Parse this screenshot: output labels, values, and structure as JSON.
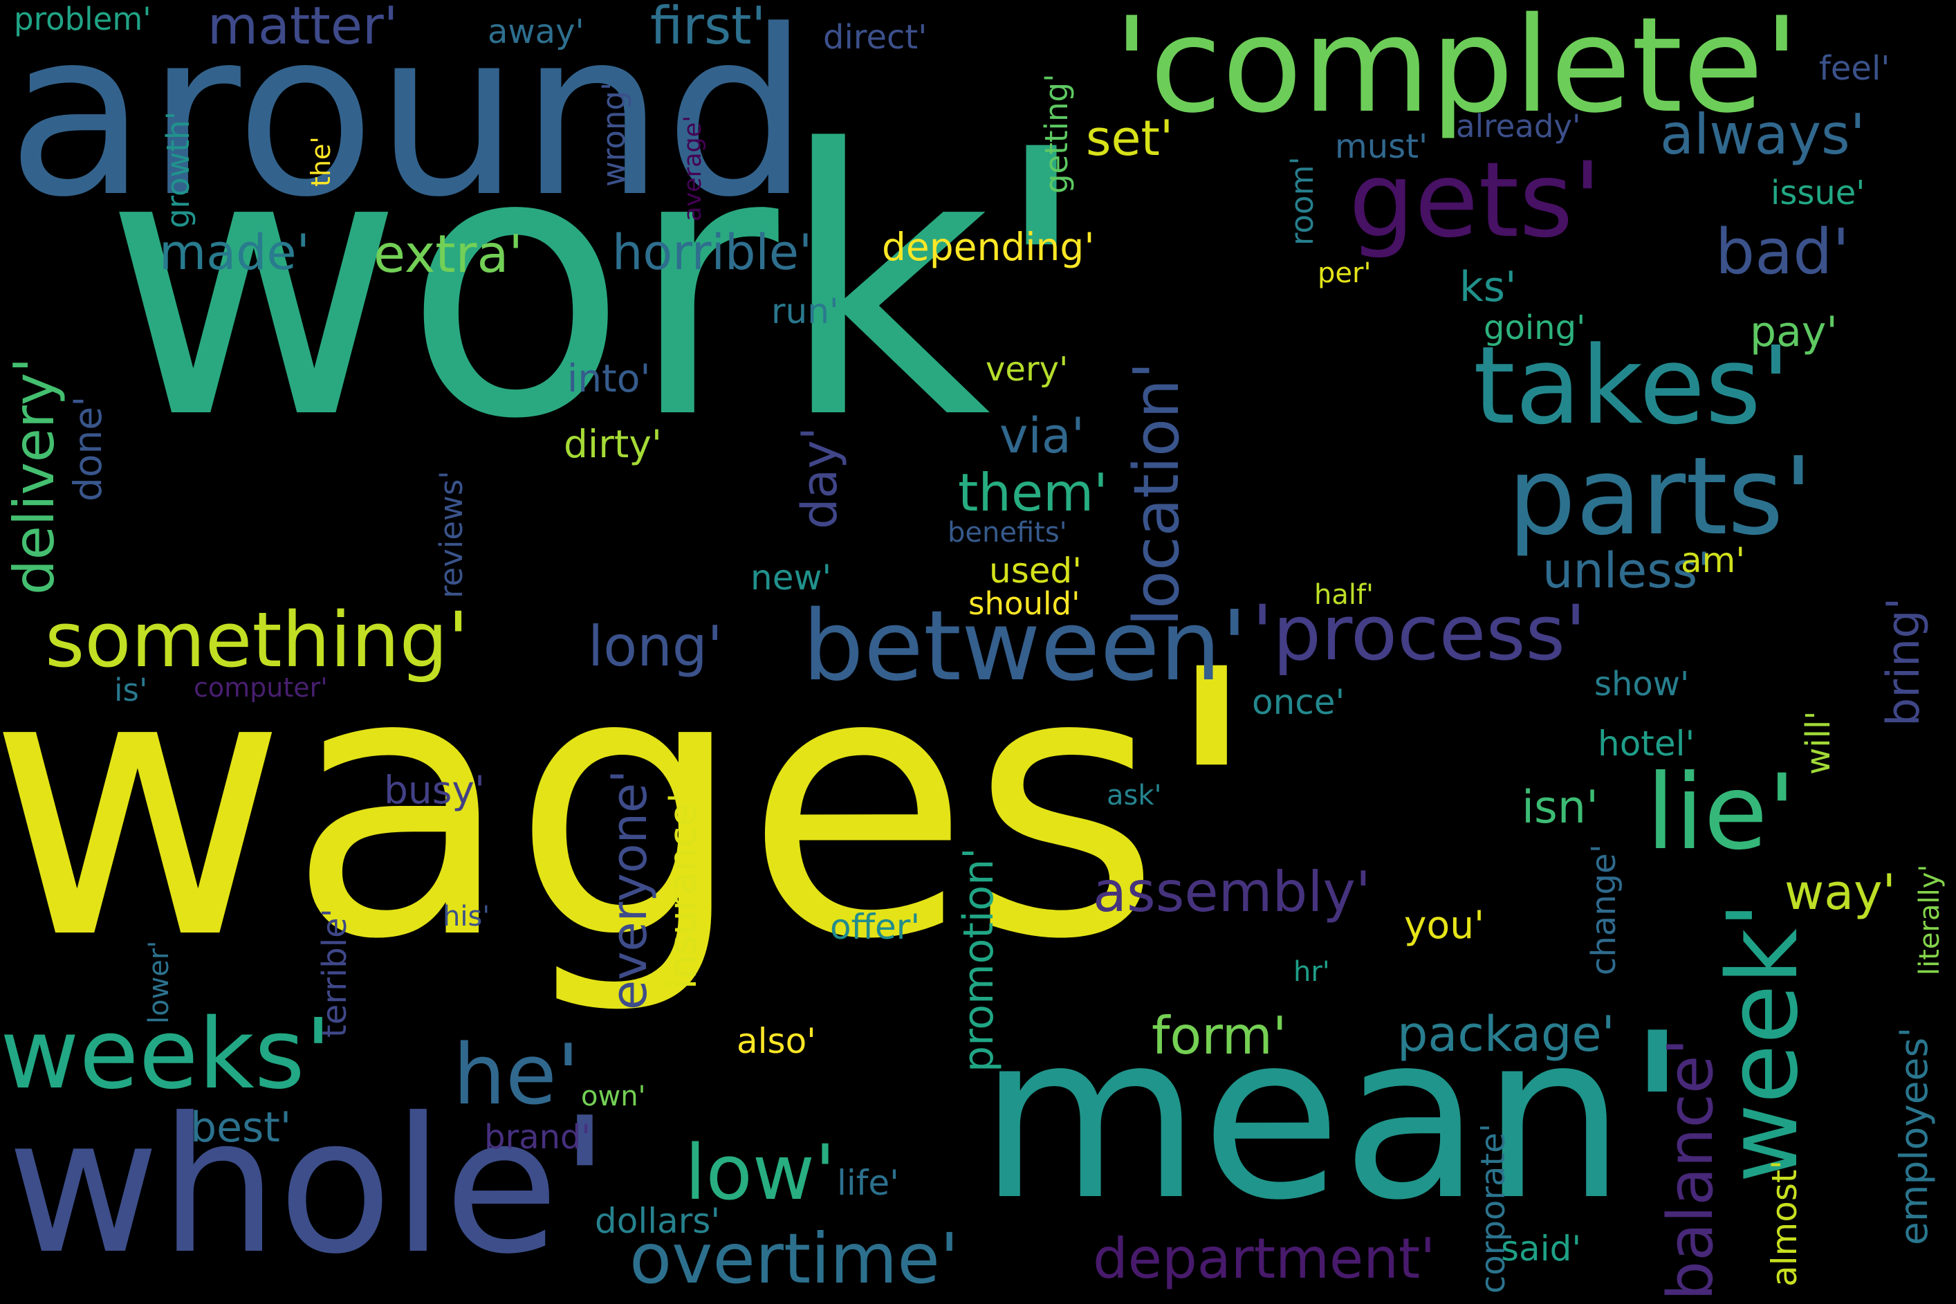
{
  "words": [
    {
      "text": "work'",
      "color": "#2aa980"
    },
    {
      "text": "wages'",
      "color": "#e3e318"
    },
    {
      "text": "around",
      "color": "#33638d"
    },
    {
      "text": "'complete'",
      "color": "#6dcd59"
    },
    {
      "text": "mean'",
      "color": "#20958b"
    },
    {
      "text": "whole'",
      "color": "#3d4e8a"
    },
    {
      "text": "gets'",
      "color": "#471164"
    },
    {
      "text": "takes'",
      "color": "#23888e"
    },
    {
      "text": "parts'",
      "color": "#2c728e"
    },
    {
      "text": "between'",
      "color": "#355f8d"
    },
    {
      "text": "'process'",
      "color": "#433e85"
    },
    {
      "text": "something'",
      "color": "#c2df23"
    },
    {
      "text": "weeks'",
      "color": "#22a884"
    },
    {
      "text": "lie'",
      "color": "#35b779"
    },
    {
      "text": "week'",
      "color": "#1fa187"
    },
    {
      "text": "location'",
      "color": "#3a548c"
    },
    {
      "text": "balance'",
      "color": "#482878"
    },
    {
      "text": "he'",
      "color": "#31688e"
    },
    {
      "text": "overtime'",
      "color": "#2d708e"
    },
    {
      "text": "department'",
      "color": "#481a6c"
    },
    {
      "text": "assembly'",
      "color": "#46337e"
    },
    {
      "text": "low'",
      "color": "#28ae80"
    },
    {
      "text": "form'",
      "color": "#75d054"
    },
    {
      "text": "package'",
      "color": "#287d8e"
    },
    {
      "text": "always'",
      "color": "#31688e"
    },
    {
      "text": "bad'",
      "color": "#3b528b"
    },
    {
      "text": "matter'",
      "color": "#3e4a89"
    },
    {
      "text": "first'",
      "color": "#2d708e"
    },
    {
      "text": "made'",
      "color": "#297b8e"
    },
    {
      "text": "extra'",
      "color": "#73d056"
    },
    {
      "text": "horrible'",
      "color": "#2e6f8e"
    },
    {
      "text": "set'",
      "color": "#d8e219"
    },
    {
      "text": "depending'",
      "color": "#fde725"
    },
    {
      "text": "delivery'",
      "color": "#44bf70"
    },
    {
      "text": "unless'",
      "color": "#2f6c8e"
    },
    {
      "text": "them'",
      "color": "#27ad81"
    },
    {
      "text": "long'",
      "color": "#3b528b"
    },
    {
      "text": "day'",
      "color": "#404688"
    },
    {
      "text": "via'",
      "color": "#31688e"
    },
    {
      "text": "bring'",
      "color": "#3f4788"
    },
    {
      "text": "everyone'",
      "color": "#3e4c8a"
    },
    {
      "text": "promotion'",
      "color": "#21a685"
    },
    {
      "text": "insurance'",
      "color": "#dde318"
    },
    {
      "text": "pay'",
      "color": "#5ec962"
    },
    {
      "text": "isn'",
      "color": "#3dbc74"
    },
    {
      "text": "way'",
      "color": "#bddf26"
    },
    {
      "text": "best'",
      "color": "#2c728e"
    },
    {
      "text": "employees'",
      "color": "#2a768e"
    },
    {
      "text": "done'",
      "color": "#39568c"
    },
    {
      "text": "terrible'",
      "color": "#3f4889"
    },
    {
      "text": "ks'",
      "color": "#20928c"
    },
    {
      "text": "very'",
      "color": "#b5de2b"
    },
    {
      "text": "dirty'",
      "color": "#a5db36"
    },
    {
      "text": "into'",
      "color": "#365c8d"
    },
    {
      "text": "reviews'",
      "color": "#3a538b"
    },
    {
      "text": "new'",
      "color": "#21918c"
    },
    {
      "text": "used'",
      "color": "#d5e21a"
    },
    {
      "text": "should'",
      "color": "#fde725"
    },
    {
      "text": "benefits'",
      "color": "#375a8c"
    },
    {
      "text": "am'",
      "color": "#d0e11c"
    },
    {
      "text": "half'",
      "color": "#bddf26"
    },
    {
      "text": "busy'",
      "color": "#424086"
    },
    {
      "text": "offer'",
      "color": "#228c8d"
    },
    {
      "text": "also'",
      "color": "#fde725"
    },
    {
      "text": "you'",
      "color": "#e7e419"
    },
    {
      "text": "hr'",
      "color": "#1f9f88"
    },
    {
      "text": "ask'",
      "color": "#25848e"
    },
    {
      "text": "change'",
      "color": "#2f6b8e"
    },
    {
      "text": "corporate'",
      "color": "#2b748e"
    },
    {
      "text": "almost'",
      "color": "#c8e020"
    },
    {
      "text": "literally'",
      "color": "#84d44b"
    },
    {
      "text": "will'",
      "color": "#a2da37"
    },
    {
      "text": "show'",
      "color": "#277f8e"
    },
    {
      "text": "hotel'",
      "color": "#1f9e89"
    },
    {
      "text": "once'",
      "color": "#23898e"
    },
    {
      "text": "dollars'",
      "color": "#26828e"
    },
    {
      "text": "life'",
      "color": "#2c718e"
    },
    {
      "text": "said'",
      "color": "#1fa187"
    },
    {
      "text": "brand'",
      "color": "#46307e"
    },
    {
      "text": "own'",
      "color": "#74d055"
    },
    {
      "text": "his'",
      "color": "#3b518b"
    },
    {
      "text": "lower'",
      "color": "#2c728e"
    },
    {
      "text": "is'",
      "color": "#29798e"
    },
    {
      "text": "computer'",
      "color": "#481f70"
    },
    {
      "text": "run'",
      "color": "#2a788e"
    },
    {
      "text": "growth'",
      "color": "#20938c"
    },
    {
      "text": "the'",
      "color": "#fde725"
    },
    {
      "text": "problem'",
      "color": "#20a486"
    },
    {
      "text": "away'",
      "color": "#2e6f8e"
    },
    {
      "text": "direct'",
      "color": "#3c508b"
    },
    {
      "text": "wrong'",
      "color": "#3b518b"
    },
    {
      "text": "average'",
      "color": "#440154"
    },
    {
      "text": "getting'",
      "color": "#5ec962"
    },
    {
      "text": "room'",
      "color": "#277f8e"
    },
    {
      "text": "must'",
      "color": "#31688e"
    },
    {
      "text": "already'",
      "color": "#3c4f8a"
    },
    {
      "text": "feel'",
      "color": "#3b528b"
    },
    {
      "text": "issue'",
      "color": "#22a884"
    },
    {
      "text": "per'",
      "color": "#e5e419"
    },
    {
      "text": "going'",
      "color": "#2db27d"
    }
  ]
}
